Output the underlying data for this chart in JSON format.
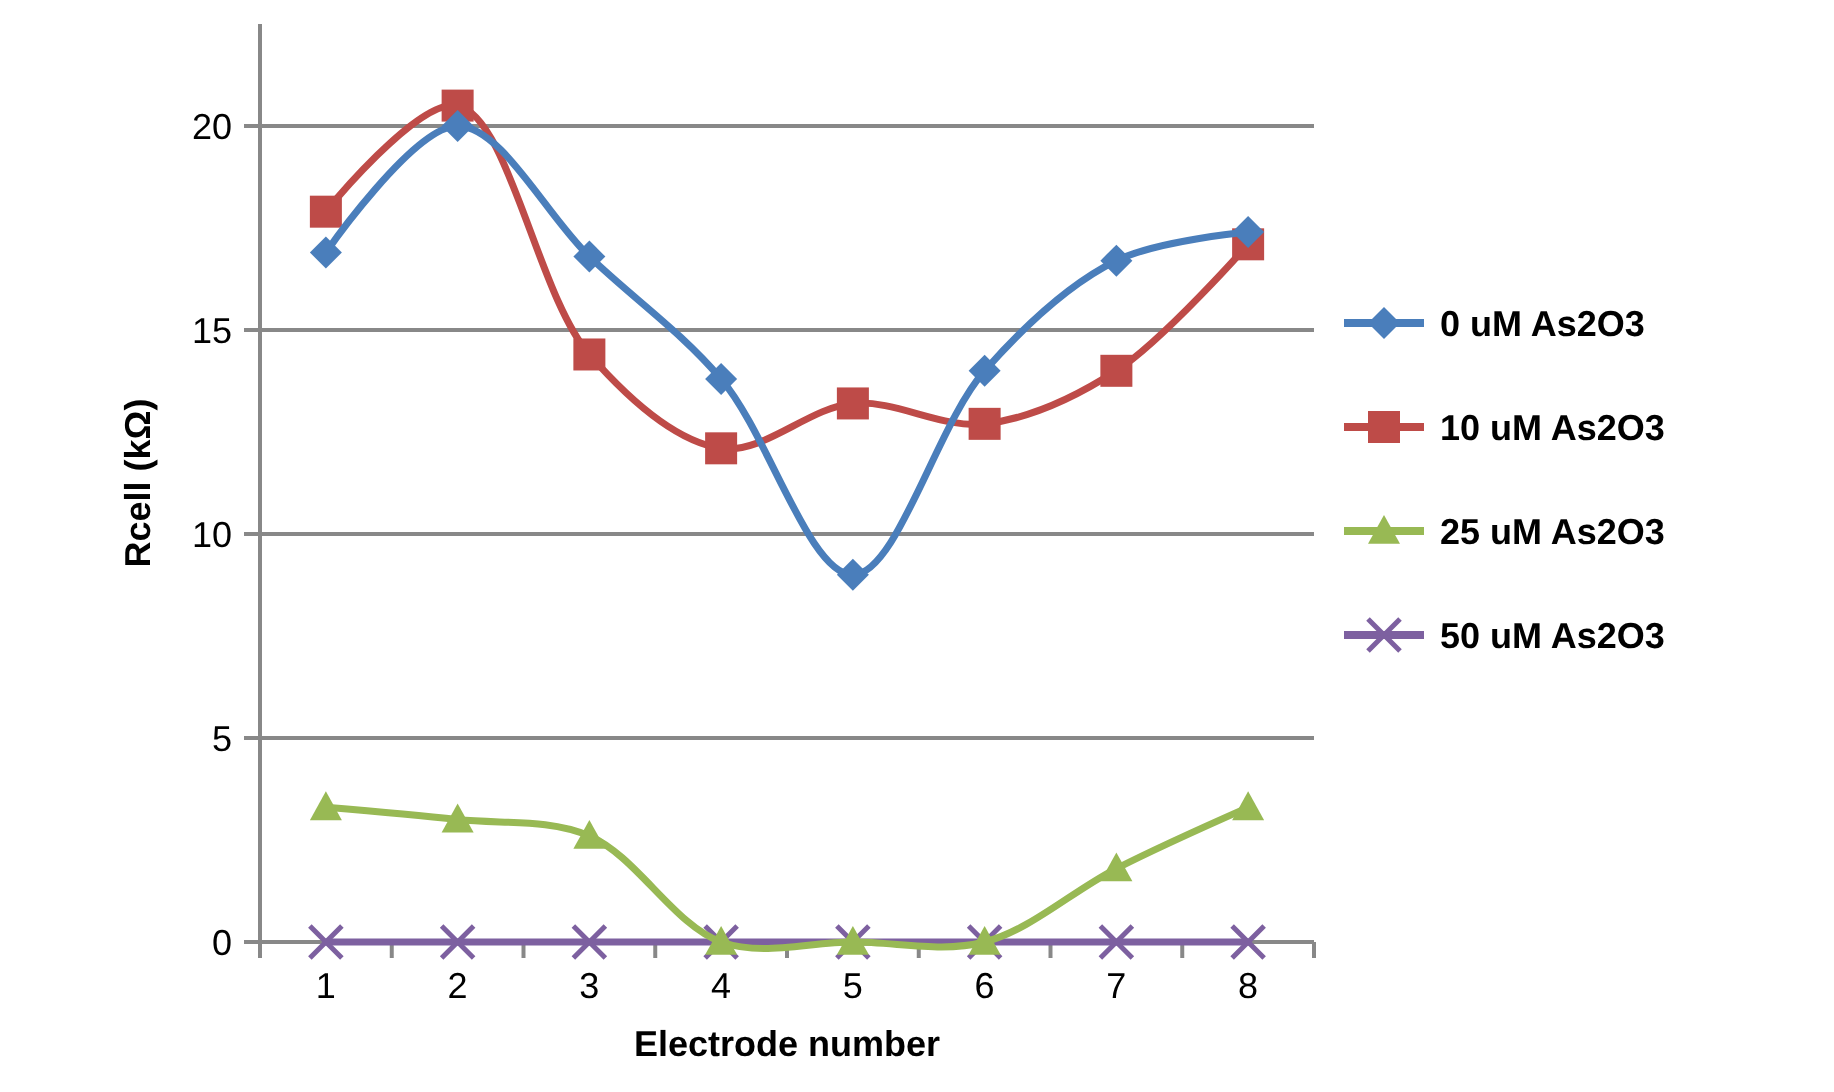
{
  "chart_data": {
    "type": "line",
    "xlabel": "Electrode number",
    "ylabel": "Rcell (kΩ)",
    "categories": [
      "1",
      "2",
      "3",
      "4",
      "5",
      "6",
      "7",
      "8"
    ],
    "ylim": [
      0,
      22.5
    ],
    "yticks": [
      0,
      5,
      10,
      15,
      20
    ],
    "grid": "y",
    "legend": "right",
    "series": [
      {
        "name": "0 uM  As2O3",
        "color": "#4a7ebb",
        "marker": "diamond",
        "values": [
          16.9,
          20.0,
          16.8,
          13.8,
          9.0,
          14.0,
          16.7,
          17.4
        ]
      },
      {
        "name": "10 uM As2O3",
        "color": "#be4b48",
        "marker": "square",
        "values": [
          17.9,
          20.5,
          14.4,
          12.1,
          13.2,
          12.7,
          14.0,
          17.1
        ]
      },
      {
        "name": "25 uM As2O3",
        "color": "#98b954",
        "marker": "triangle",
        "values": [
          3.3,
          3.0,
          2.6,
          0,
          0,
          0,
          1.8,
          3.3
        ]
      },
      {
        "name": "50 uM As2O3",
        "color": "#7d60a0",
        "marker": "cross",
        "values": [
          0,
          0,
          0,
          0,
          0,
          0,
          0,
          0
        ]
      }
    ]
  }
}
